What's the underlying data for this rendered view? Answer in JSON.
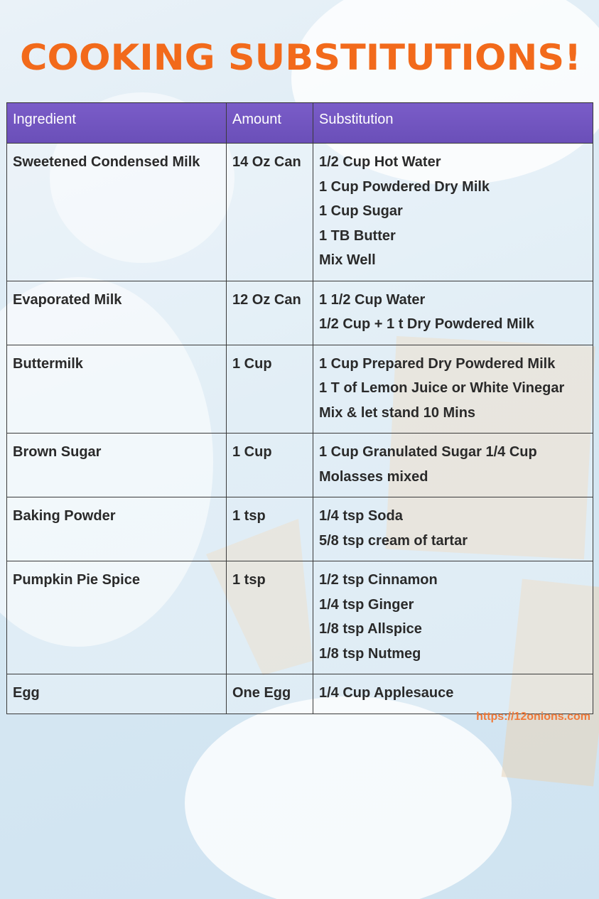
{
  "header": {
    "title": "COOKING SUBSTITUTIONS!"
  },
  "table": {
    "columns": [
      "Ingredient",
      "Amount",
      "Substitution"
    ],
    "rows": [
      {
        "ingredient": "Sweetened Condensed Milk",
        "amount": "14 Oz Can",
        "substitution": [
          "1/2 Cup Hot Water",
          "1 Cup Powdered Dry Milk",
          "1 Cup Sugar",
          "1 TB Butter",
          "Mix Well"
        ]
      },
      {
        "ingredient": "Evaporated Milk",
        "amount": "12 Oz Can",
        "substitution": [
          "1 1/2 Cup Water",
          "1/2 Cup + 1 t Dry Powdered Milk"
        ]
      },
      {
        "ingredient": "Buttermilk",
        "amount": "1 Cup",
        "substitution": [
          "1 Cup Prepared Dry Powdered Milk",
          "1 T of Lemon Juice or White Vinegar",
          "Mix & let stand 10 Mins"
        ]
      },
      {
        "ingredient": "Brown Sugar",
        "amount": "1 Cup",
        "substitution": [
          "1 Cup Granulated Sugar 1/4 Cup",
          "Molasses mixed"
        ]
      },
      {
        "ingredient": "Baking Powder",
        "amount": "1 tsp",
        "substitution": [
          "1/4 tsp Soda",
          "5/8 tsp cream of tartar"
        ]
      },
      {
        "ingredient": "Pumpkin Pie Spice",
        "amount": "1 tsp",
        "substitution": [
          "1/2 tsp Cinnamon",
          "1/4 tsp Ginger",
          "1/8 tsp Allspice",
          "1/8 tsp Nutmeg"
        ]
      },
      {
        "ingredient": "Egg",
        "amount": "One Egg",
        "substitution": [
          "1/4 Cup Applesauce"
        ]
      }
    ]
  },
  "footer": {
    "url": "https://12onions.com"
  }
}
